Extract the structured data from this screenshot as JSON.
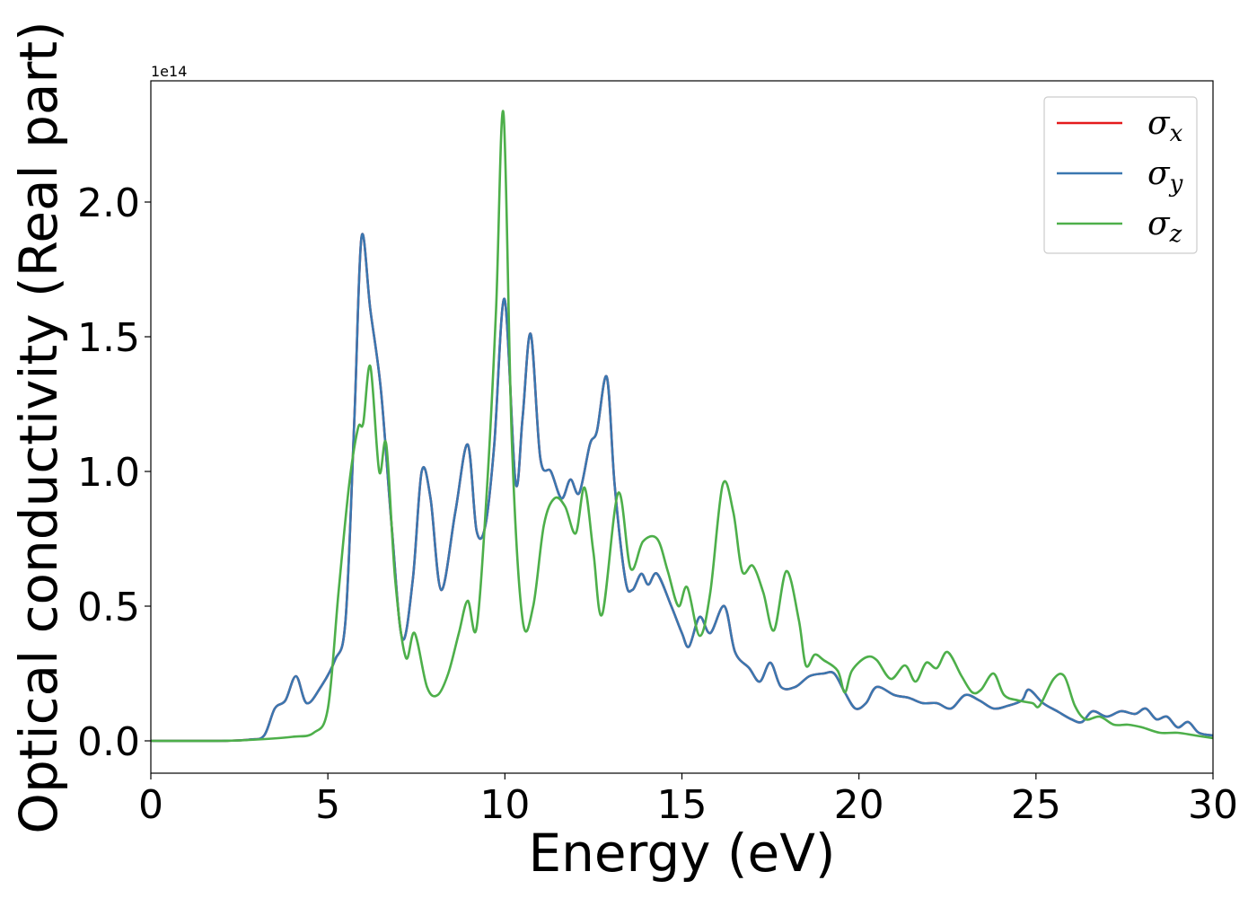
{
  "chart_data": {
    "type": "line",
    "title": "",
    "xlabel": "Energy (eV)",
    "ylabel": "Optical conductivity (Real part)",
    "y_offset_label": "1e14",
    "xlim": [
      0,
      30
    ],
    "ylim": [
      -0.12,
      2.45
    ],
    "x_ticks": [
      0,
      5,
      10,
      15,
      20,
      25,
      30
    ],
    "x_tick_labels": [
      "0",
      "5",
      "10",
      "15",
      "20",
      "25",
      "30"
    ],
    "y_ticks": [
      0.0,
      0.5,
      1.0,
      1.5,
      2.0
    ],
    "y_tick_labels": [
      "0.0",
      "0.5",
      "1.0",
      "1.5",
      "2.0"
    ],
    "grid": false,
    "legend_position": "top-right",
    "series": [
      {
        "name": "σx",
        "legend_symbol": "σ",
        "legend_subscript": "x",
        "color": "#e41a1c",
        "x": [
          0,
          2,
          2.8,
          3.2,
          3.5,
          3.8,
          4.1,
          4.4,
          4.8,
          5.2,
          5.5,
          5.75,
          5.95,
          6.2,
          6.5,
          6.8,
          7.1,
          7.4,
          7.65,
          7.9,
          8.2,
          8.6,
          8.95,
          9.2,
          9.45,
          9.7,
          9.99,
          10.3,
          10.5,
          10.73,
          11.0,
          11.3,
          11.6,
          11.85,
          12.1,
          12.4,
          12.6,
          12.88,
          13.1,
          13.4,
          13.6,
          13.85,
          14.05,
          14.3,
          14.7,
          15.0,
          15.2,
          15.5,
          15.8,
          16.2,
          16.5,
          16.9,
          17.2,
          17.5,
          17.8,
          18.2,
          18.6,
          19.0,
          19.3,
          19.6,
          19.9,
          20.2,
          20.5,
          21.0,
          21.4,
          21.8,
          22.2,
          22.6,
          23.0,
          23.4,
          23.8,
          24.2,
          24.6,
          24.8,
          25.2,
          25.6,
          26.0,
          26.3,
          26.6,
          27.0,
          27.4,
          27.8,
          28.1,
          28.4,
          28.7,
          29.0,
          29.3,
          29.6,
          30.0
        ],
        "y": [
          0.0,
          0.0,
          0.005,
          0.02,
          0.12,
          0.15,
          0.24,
          0.14,
          0.2,
          0.3,
          0.45,
          1.2,
          1.87,
          1.6,
          1.3,
          0.8,
          0.38,
          0.6,
          1.0,
          0.9,
          0.56,
          0.85,
          1.1,
          0.78,
          0.8,
          1.1,
          1.64,
          0.96,
          1.2,
          1.51,
          1.05,
          1.0,
          0.9,
          0.97,
          0.92,
          1.1,
          1.15,
          1.35,
          0.95,
          0.6,
          0.56,
          0.62,
          0.58,
          0.62,
          0.5,
          0.4,
          0.35,
          0.46,
          0.4,
          0.5,
          0.33,
          0.27,
          0.22,
          0.29,
          0.2,
          0.2,
          0.24,
          0.25,
          0.25,
          0.18,
          0.12,
          0.14,
          0.2,
          0.17,
          0.16,
          0.14,
          0.14,
          0.12,
          0.17,
          0.15,
          0.12,
          0.13,
          0.15,
          0.19,
          0.14,
          0.11,
          0.08,
          0.07,
          0.11,
          0.09,
          0.11,
          0.1,
          0.12,
          0.08,
          0.09,
          0.05,
          0.07,
          0.03,
          0.02
        ]
      },
      {
        "name": "σy",
        "legend_symbol": "σ",
        "legend_subscript": "y",
        "color": "#3a77b0",
        "x": [
          0,
          2,
          2.8,
          3.2,
          3.5,
          3.8,
          4.1,
          4.4,
          4.8,
          5.2,
          5.5,
          5.75,
          5.95,
          6.2,
          6.5,
          6.8,
          7.1,
          7.4,
          7.65,
          7.9,
          8.2,
          8.6,
          8.95,
          9.2,
          9.45,
          9.7,
          9.99,
          10.3,
          10.5,
          10.73,
          11.0,
          11.3,
          11.6,
          11.85,
          12.1,
          12.4,
          12.6,
          12.88,
          13.1,
          13.4,
          13.6,
          13.85,
          14.05,
          14.3,
          14.7,
          15.0,
          15.2,
          15.5,
          15.8,
          16.2,
          16.5,
          16.9,
          17.2,
          17.5,
          17.8,
          18.2,
          18.6,
          19.0,
          19.3,
          19.6,
          19.9,
          20.2,
          20.5,
          21.0,
          21.4,
          21.8,
          22.2,
          22.6,
          23.0,
          23.4,
          23.8,
          24.2,
          24.6,
          24.8,
          25.2,
          25.6,
          26.0,
          26.3,
          26.6,
          27.0,
          27.4,
          27.8,
          28.1,
          28.4,
          28.7,
          29.0,
          29.3,
          29.6,
          30.0
        ],
        "y": [
          0.0,
          0.0,
          0.005,
          0.02,
          0.12,
          0.15,
          0.24,
          0.14,
          0.2,
          0.3,
          0.45,
          1.2,
          1.87,
          1.6,
          1.3,
          0.8,
          0.38,
          0.6,
          1.0,
          0.9,
          0.56,
          0.85,
          1.1,
          0.78,
          0.8,
          1.1,
          1.64,
          0.96,
          1.2,
          1.51,
          1.05,
          1.0,
          0.9,
          0.97,
          0.92,
          1.1,
          1.15,
          1.35,
          0.95,
          0.6,
          0.56,
          0.62,
          0.58,
          0.62,
          0.5,
          0.4,
          0.35,
          0.46,
          0.4,
          0.5,
          0.33,
          0.27,
          0.22,
          0.29,
          0.2,
          0.2,
          0.24,
          0.25,
          0.25,
          0.18,
          0.12,
          0.14,
          0.2,
          0.17,
          0.16,
          0.14,
          0.14,
          0.12,
          0.17,
          0.15,
          0.12,
          0.13,
          0.15,
          0.19,
          0.14,
          0.11,
          0.08,
          0.07,
          0.11,
          0.09,
          0.11,
          0.1,
          0.12,
          0.08,
          0.09,
          0.05,
          0.07,
          0.03,
          0.02
        ]
      },
      {
        "name": "σz",
        "legend_symbol": "σ",
        "legend_subscript": "z",
        "color": "#4daf4a",
        "x": [
          0,
          2,
          3,
          4,
          4.6,
          5.0,
          5.3,
          5.6,
          5.85,
          6.0,
          6.2,
          6.45,
          6.65,
          6.9,
          7.2,
          7.45,
          7.8,
          8.1,
          8.4,
          8.7,
          8.95,
          9.2,
          9.5,
          9.75,
          9.96,
          10.2,
          10.5,
          10.8,
          11.1,
          11.4,
          11.7,
          12.0,
          12.25,
          12.5,
          12.75,
          13.2,
          13.55,
          13.9,
          14.3,
          14.6,
          14.9,
          15.15,
          15.5,
          15.8,
          16.15,
          16.45,
          16.7,
          17.0,
          17.3,
          17.6,
          17.95,
          18.3,
          18.5,
          18.75,
          19.0,
          19.4,
          19.6,
          19.8,
          20.2,
          20.5,
          20.9,
          21.3,
          21.6,
          21.9,
          22.2,
          22.5,
          22.9,
          23.2,
          23.45,
          23.8,
          24.1,
          24.5,
          24.9,
          25.1,
          25.5,
          25.8,
          26.1,
          26.4,
          26.8,
          27.2,
          27.6,
          28.0,
          28.5,
          29.0,
          29.5,
          30.0
        ],
        "y": [
          0.0,
          0.0,
          0.005,
          0.015,
          0.03,
          0.12,
          0.55,
          0.95,
          1.16,
          1.18,
          1.39,
          1.0,
          1.1,
          0.6,
          0.31,
          0.4,
          0.2,
          0.17,
          0.25,
          0.4,
          0.52,
          0.42,
          0.95,
          1.6,
          2.33,
          1.1,
          0.45,
          0.5,
          0.8,
          0.9,
          0.87,
          0.77,
          0.94,
          0.7,
          0.47,
          0.92,
          0.64,
          0.74,
          0.75,
          0.63,
          0.5,
          0.57,
          0.39,
          0.55,
          0.95,
          0.85,
          0.63,
          0.65,
          0.55,
          0.41,
          0.63,
          0.45,
          0.28,
          0.32,
          0.3,
          0.26,
          0.18,
          0.26,
          0.31,
          0.3,
          0.23,
          0.28,
          0.22,
          0.29,
          0.27,
          0.33,
          0.24,
          0.18,
          0.19,
          0.25,
          0.17,
          0.15,
          0.14,
          0.13,
          0.23,
          0.24,
          0.13,
          0.08,
          0.09,
          0.06,
          0.06,
          0.05,
          0.03,
          0.03,
          0.02,
          0.01
        ]
      }
    ]
  }
}
